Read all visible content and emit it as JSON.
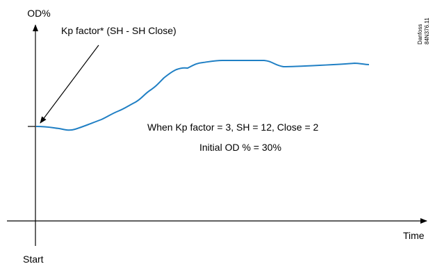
{
  "chart_data": {
    "type": "line",
    "ylabel": "OD%",
    "xlabel": "Time",
    "x_origin_label": "Start",
    "grid": false,
    "series": [
      {
        "color": "#1f7fc4",
        "x": [
          0,
          0.03,
          0.06,
          0.1,
          0.15,
          0.2,
          0.26,
          0.32,
          0.38,
          0.44,
          0.5,
          0.55,
          0.6,
          0.65,
          0.7,
          0.75,
          0.8,
          0.85,
          0.88,
          0.92,
          0.96,
          1
        ],
        "y": [
          0,
          -0.02,
          -0.04,
          -0.12,
          -0.08,
          0.4,
          1.0,
          2.1,
          3.4,
          5.1,
          6.2,
          6.5,
          6.5,
          6.5,
          6.1,
          6.1,
          6.2,
          6.3,
          6.35,
          6.4,
          6.45,
          6.3
        ]
      }
    ],
    "annotations": [
      {
        "text": "Kp factor* (SH - SH Close)",
        "type": "arrow-label"
      },
      {
        "text": "When Kp factor = 3, SH = 12, Close = 2"
      },
      {
        "text": "Initial OD % = 30%"
      }
    ]
  },
  "watermark": {
    "brand": "Danfoss",
    "code": "84N376.11"
  }
}
